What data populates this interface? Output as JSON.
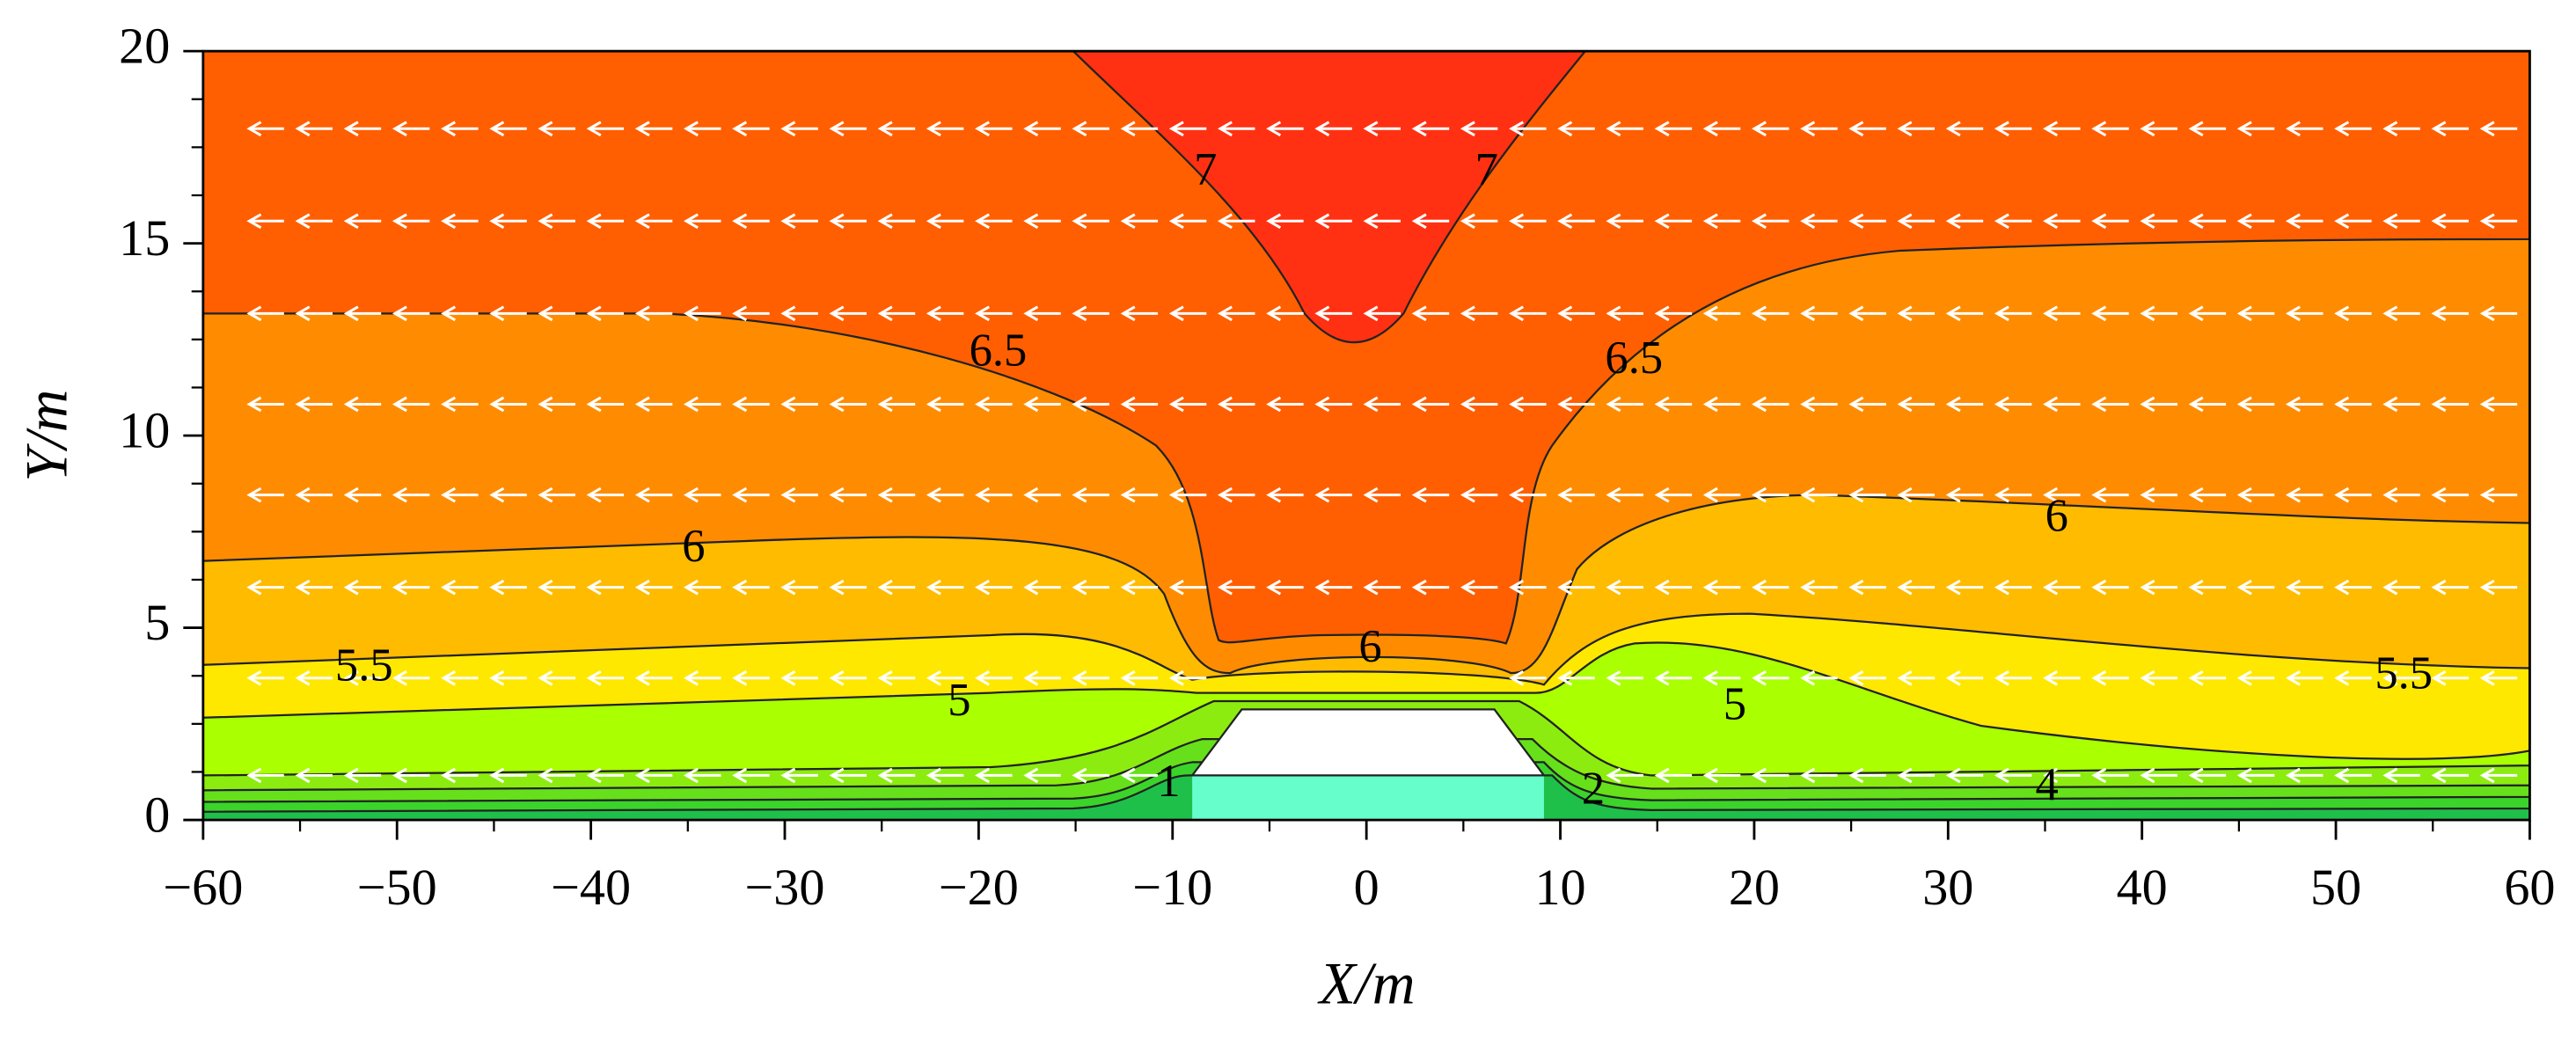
{
  "chart_data": {
    "type": "contour",
    "xlabel": "X/m",
    "ylabel": "Y/m",
    "xlim": [
      -60,
      60
    ],
    "ylim": [
      0,
      20
    ],
    "xticks": [
      {
        "value": -60,
        "label": "−60"
      },
      {
        "value": -50,
        "label": "−50"
      },
      {
        "value": -40,
        "label": "−40"
      },
      {
        "value": -30,
        "label": "−30"
      },
      {
        "value": -20,
        "label": "−20"
      },
      {
        "value": -10,
        "label": "−10"
      },
      0,
      10,
      20,
      30,
      40,
      50,
      60
    ],
    "yticks": [
      0,
      5,
      10,
      15,
      20
    ],
    "contour_labels": [
      {
        "value": 7,
        "x": -8.3,
        "y": 16.8
      },
      {
        "value": 7,
        "x": 6.2,
        "y": 16.8
      },
      {
        "value": 6.5,
        "x": -19,
        "y": 12.1
      },
      {
        "value": 6.5,
        "x": 13.8,
        "y": 11.9
      },
      {
        "value": 6,
        "x": -34.7,
        "y": 7
      },
      {
        "value": 6,
        "x": 35.6,
        "y": 7.8
      },
      {
        "value": 6,
        "x": 0.2,
        "y": 4.4
      },
      {
        "value": 5.5,
        "x": -51.7,
        "y": 3.9
      },
      {
        "value": 5.5,
        "x": 53.5,
        "y": 3.7
      },
      {
        "value": 5,
        "x": -21,
        "y": 3
      },
      {
        "value": 5,
        "x": 19,
        "y": 2.9
      },
      {
        "value": 4,
        "x": 35.1,
        "y": 0.8
      },
      {
        "value": 1,
        "x": -10.2,
        "y": 0.9
      },
      {
        "value": 2,
        "x": 11.7,
        "y": 0.7
      }
    ]
  }
}
